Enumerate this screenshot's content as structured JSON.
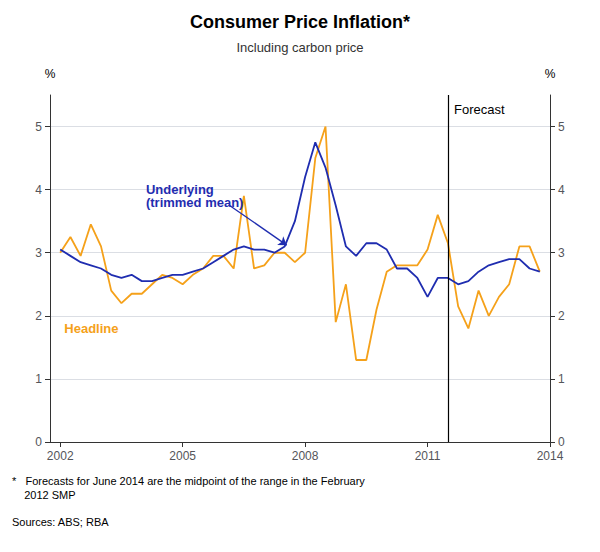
{
  "chart_data": {
    "type": "line",
    "title": "Consumer Price Inflation*",
    "subtitle": "Including carbon price",
    "footnote": "*   Forecasts for June 2014 are the midpoint of the range in the February\n    2012 SMP",
    "sources": "Sources: ABS; RBA",
    "x": [
      2002.0,
      2002.25,
      2002.5,
      2002.75,
      2003.0,
      2003.25,
      2003.5,
      2003.75,
      2004.0,
      2004.25,
      2004.5,
      2004.75,
      2005.0,
      2005.25,
      2005.5,
      2005.75,
      2006.0,
      2006.25,
      2006.5,
      2006.75,
      2007.0,
      2007.25,
      2007.5,
      2007.75,
      2008.0,
      2008.25,
      2008.5,
      2008.75,
      2009.0,
      2009.25,
      2009.5,
      2009.75,
      2010.0,
      2010.25,
      2010.5,
      2010.75,
      2011.0,
      2011.25,
      2011.5,
      2011.75,
      2012.0,
      2012.25,
      2012.5,
      2012.75,
      2013.0,
      2013.25,
      2013.5,
      2013.75
    ],
    "series": [
      {
        "name": "Headline",
        "color": "#f5a11a",
        "values": [
          3.0,
          3.25,
          2.95,
          3.45,
          3.1,
          2.4,
          2.2,
          2.35,
          2.35,
          2.5,
          2.65,
          2.6,
          2.5,
          2.65,
          2.75,
          2.95,
          2.95,
          2.75,
          3.9,
          2.75,
          2.8,
          3.0,
          3.0,
          2.85,
          3.0,
          4.5,
          5.0,
          1.9,
          2.5,
          1.3,
          1.3,
          2.1,
          2.7,
          2.8,
          2.8,
          2.8,
          3.05,
          3.6,
          3.15,
          2.15,
          1.8,
          2.4,
          2.0,
          2.3,
          2.5,
          3.1,
          3.1,
          2.7
        ]
      },
      {
        "name": "Underlying\n(trimmed mean)",
        "color": "#1f2db0",
        "values": [
          3.05,
          2.95,
          2.85,
          2.8,
          2.75,
          2.65,
          2.6,
          2.65,
          2.55,
          2.55,
          2.6,
          2.65,
          2.65,
          2.7,
          2.75,
          2.85,
          2.95,
          3.05,
          3.1,
          3.05,
          3.05,
          3.0,
          3.1,
          3.5,
          4.2,
          4.75,
          4.35,
          3.75,
          3.1,
          2.95,
          3.15,
          3.15,
          3.05,
          2.75,
          2.75,
          2.6,
          2.3,
          2.6,
          2.6,
          2.5,
          2.55,
          2.7,
          2.8,
          2.85,
          2.9,
          2.9,
          2.75,
          2.7
        ]
      }
    ],
    "xlim": [
      2001.75,
      2014.0
    ],
    "xticks": [
      2002,
      2005,
      2008,
      2011,
      2014
    ],
    "ylim": [
      0,
      5.5
    ],
    "yticks": [
      0,
      1,
      2,
      3,
      4,
      5
    ],
    "ylabel": "%",
    "y2lim": [
      0,
      5.5
    ],
    "y2ticks": [
      0,
      1,
      2,
      3,
      4,
      5
    ],
    "y2label": "%",
    "grid": true,
    "annotations": [
      {
        "text": "Forecast",
        "x": 2011.5
      }
    ]
  }
}
